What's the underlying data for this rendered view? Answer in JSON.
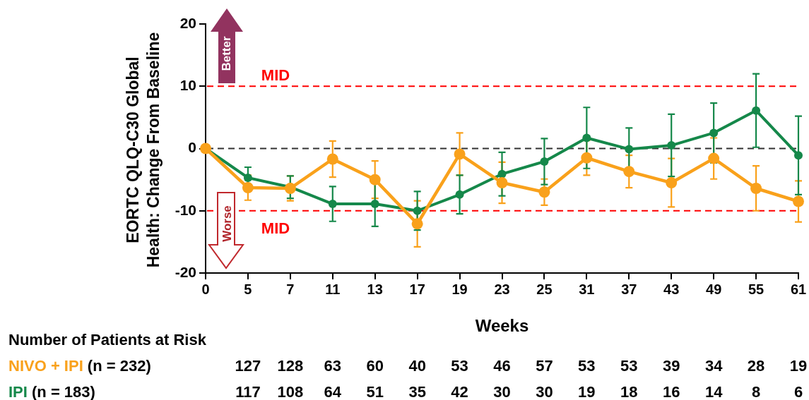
{
  "chart_data": {
    "type": "line",
    "xlabel": "Weeks",
    "ylabel": "EORTC QLQ-C30 Global Health: Change From Baseline",
    "categories": [
      "0",
      "5",
      "7",
      "11",
      "13",
      "17",
      "19",
      "23",
      "25",
      "31",
      "37",
      "43",
      "49",
      "55",
      "61"
    ],
    "series": [
      {
        "name": "NIVO + IPI",
        "color": "#f9a11b",
        "values": [
          0,
          -6.3,
          -6.4,
          -1.7,
          -5.0,
          -12.1,
          -0.9,
          -5.5,
          -7.0,
          -1.5,
          -3.7,
          -5.5,
          -1.6,
          -6.4,
          -8.5
        ],
        "errors": [
          null,
          2.0,
          2.0,
          2.9,
          3.0,
          3.7,
          3.4,
          3.3,
          2.1,
          2.8,
          2.6,
          3.9,
          3.3,
          3.6,
          3.3
        ]
      },
      {
        "name": "IPI",
        "color": "#15884a",
        "values": [
          0,
          -4.7,
          -6.2,
          -8.9,
          -8.9,
          -10.0,
          -7.4,
          -4.1,
          -2.1,
          1.7,
          -0.1,
          0.5,
          2.5,
          6.1,
          -1.1
        ],
        "errors": [
          null,
          1.7,
          1.8,
          2.8,
          3.6,
          3.1,
          3.1,
          3.5,
          3.7,
          4.9,
          3.4,
          5.0,
          4.8,
          5.9,
          6.3
        ]
      }
    ],
    "ylim": [
      -20,
      20
    ],
    "yticks": [
      -20,
      -10,
      0,
      10,
      20
    ],
    "ref_lines": [
      {
        "axis": "y",
        "value": 10,
        "label": "MID",
        "color": "#ff0000",
        "line_style": "dashed"
      },
      {
        "axis": "y",
        "value": -10,
        "label": "MID",
        "color": "#ff0000",
        "line_style": "dashed"
      },
      {
        "axis": "y",
        "value": 0,
        "color": "#333333",
        "line_style": "dashed"
      }
    ],
    "annotations": [
      "Number of Patients at Risk",
      "(n = 232)",
      "127 128 63 60 40 53 46 57 53 53 39 34 28 19",
      "(n = 183)",
      "117 108 64 51 35 42 30 30 19 18 16 14 8 6",
      "Better",
      "Worse"
    ],
    "marker": "circle",
    "line_style": "solid",
    "grid": false,
    "legend": false
  }
}
